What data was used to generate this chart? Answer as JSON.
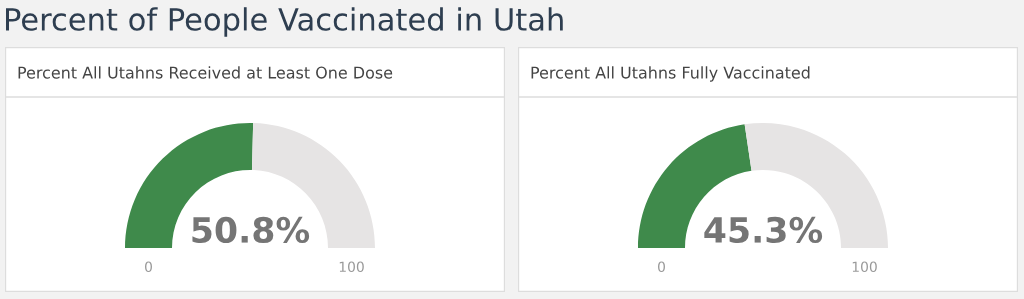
{
  "chart_data": [
    {
      "type": "other",
      "title": "Percent of People Vaccinated in Utah"
    },
    {
      "type": "donut",
      "title": "Percent All Utahns Received at Least One Dose",
      "categories": [
        null,
        null
      ],
      "values": [
        50.8,
        49.2
      ],
      "colors": [
        "#3f8a4b",
        "#e6e4e4"
      ],
      "value_labels": [
        "50.8%",
        null
      ],
      "annotations": [
        "0",
        "100"
      ]
    },
    {
      "type": "donut",
      "title": "Percent All Utahns Fully Vaccinated",
      "categories": [
        null,
        null
      ],
      "values": [
        45.3,
        54.7
      ],
      "colors": [
        "#3f8a4b",
        "#e6e4e4"
      ],
      "value_labels": [
        "45.3%",
        null
      ],
      "annotations": [
        "0",
        "100"
      ]
    }
  ]
}
